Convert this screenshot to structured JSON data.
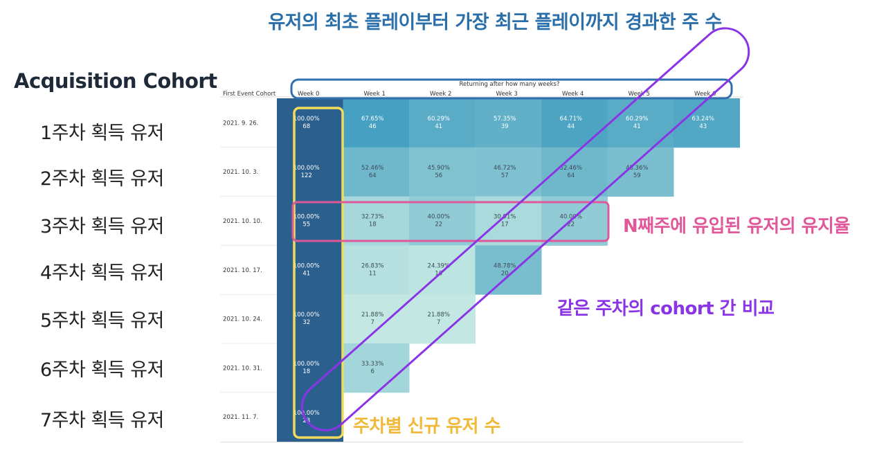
{
  "page": {
    "title": "유저의 최초 플레이부터 가장 최근 플레이까지 경과한 주 수",
    "side_title": "Acquisition Cohort",
    "cohort_labels": [
      "1주차 획득 유저",
      "2주차 획득 유저",
      "3주차 획득 유저",
      "4주차 획득 유저",
      "5주차 획득 유저",
      "6주차 획득 유저",
      "7주차 획득 유저"
    ]
  },
  "annotations": {
    "row_highlight": "N째주에 유입된 유저의 유지율",
    "diagonal_highlight": "같은 주차의 cohort 간 비교",
    "week0_highlight": "주차별 신규 유저 수"
  },
  "colors": {
    "title": "#2a6eaa",
    "week0_box": "#f2dc5a",
    "row_box": "#e0589a",
    "diag_box": "#8a34e6",
    "header_box": "#2f6fae"
  },
  "chart_data": {
    "type": "table",
    "row_header": "First Event Cohort",
    "column_group_title": "Returning after how many weeks?",
    "columns": [
      "Week 0",
      "Week 1",
      "Week 2",
      "Week 3",
      "Week 4",
      "Week 5",
      "Week 6"
    ],
    "rows": [
      {
        "cohort": "2021. 9. 26.",
        "pct": [
          "100.00%",
          "67.65%",
          "60.29%",
          "57.35%",
          "64.71%",
          "60.29%",
          "63.24%"
        ],
        "counts": [
          68,
          46,
          41,
          39,
          44,
          41,
          43
        ]
      },
      {
        "cohort": "2021. 10. 3.",
        "pct": [
          "100.00%",
          "52.46%",
          "45.90%",
          "46.72%",
          "52.46%",
          "48.36%"
        ],
        "counts": [
          122,
          64,
          56,
          57,
          64,
          59
        ]
      },
      {
        "cohort": "2021. 10. 10.",
        "pct": [
          "100.00%",
          "32.73%",
          "40.00%",
          "30.91%",
          "40.00%"
        ],
        "counts": [
          55,
          18,
          22,
          17,
          22
        ]
      },
      {
        "cohort": "2021. 10. 17.",
        "pct": [
          "100.00%",
          "26.83%",
          "24.39%",
          "48.78%"
        ],
        "counts": [
          41,
          11,
          10,
          20
        ]
      },
      {
        "cohort": "2021. 10. 24.",
        "pct": [
          "100.00%",
          "21.88%",
          "21.88%"
        ],
        "counts": [
          32,
          7,
          7
        ]
      },
      {
        "cohort": "2021. 10. 31.",
        "pct": [
          "100.00%",
          "33.33%"
        ],
        "counts": [
          18,
          6
        ]
      },
      {
        "cohort": "2021. 11. 7.",
        "pct": [
          "100.00%"
        ],
        "counts": [
          23
        ]
      }
    ]
  }
}
